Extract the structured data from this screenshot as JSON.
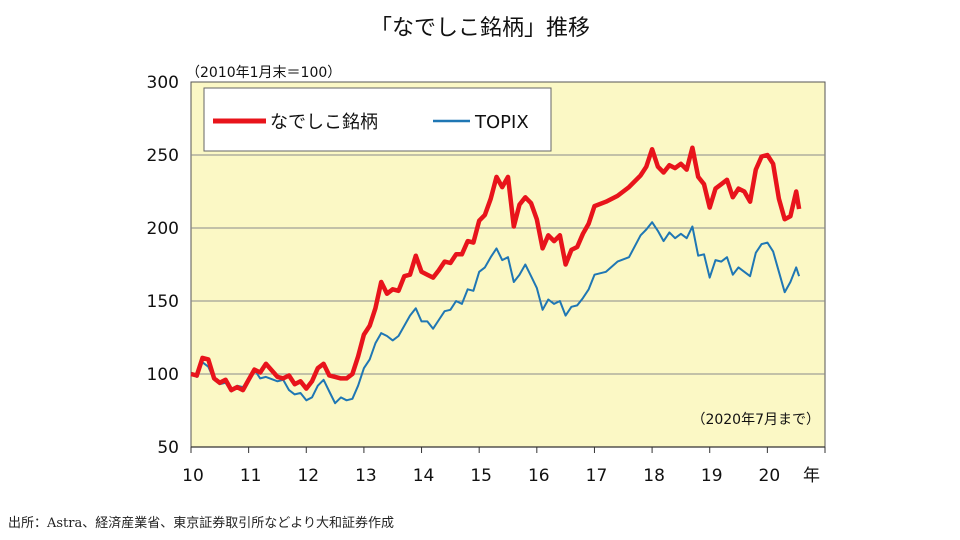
{
  "title": "「なでしこ銘柄」推移",
  "source": "出所：Astra、経済産業省、東京証券取引所などより大和証券作成",
  "colors": {
    "plot_bg": "#FBF8C5",
    "grid": "#8a8a8a",
    "nadeshiko": "#E8141B",
    "topix": "#1F77B4"
  },
  "chart_data": {
    "type": "line",
    "base_note": "（2010年1月末＝100）",
    "end_note": "（2020年7月まで）",
    "xlabel": "年",
    "ylabel": "",
    "ylim": [
      50,
      300
    ],
    "yticks": [
      50,
      100,
      150,
      200,
      250,
      300
    ],
    "xlim": [
      10,
      21.0
    ],
    "xticks": [
      "10",
      "11",
      "12",
      "13",
      "14",
      "15",
      "16",
      "17",
      "18",
      "19",
      "20"
    ],
    "grid": true,
    "legend_position": "top-left",
    "series": [
      {
        "name": "なでしこ銘柄",
        "x": [
          10.0,
          10.1,
          10.2,
          10.3,
          10.4,
          10.5,
          10.6,
          10.7,
          10.8,
          10.9,
          11.0,
          11.1,
          11.2,
          11.3,
          11.5,
          11.6,
          11.7,
          11.8,
          11.9,
          12.0,
          12.1,
          12.2,
          12.3,
          12.4,
          12.5,
          12.6,
          12.7,
          12.8,
          12.9,
          13.0,
          13.1,
          13.2,
          13.3,
          13.4,
          13.5,
          13.6,
          13.7,
          13.8,
          13.9,
          14.0,
          14.1,
          14.2,
          14.3,
          14.4,
          14.5,
          14.6,
          14.7,
          14.8,
          14.9,
          15.0,
          15.1,
          15.2,
          15.3,
          15.4,
          15.5,
          15.6,
          15.7,
          15.8,
          15.9,
          16.0,
          16.1,
          16.2,
          16.3,
          16.4,
          16.5,
          16.6,
          16.7,
          16.8,
          16.9,
          17.0,
          17.2,
          17.4,
          17.6,
          17.8,
          17.9,
          18.0,
          18.1,
          18.2,
          18.3,
          18.4,
          18.5,
          18.6,
          18.7,
          18.8,
          18.9,
          19.0,
          19.1,
          19.2,
          19.3,
          19.4,
          19.5,
          19.6,
          19.7,
          19.8,
          19.9,
          20.0,
          20.1,
          20.2,
          20.3,
          20.4,
          20.5,
          20.55
        ],
        "values": [
          100,
          99,
          111,
          110,
          97,
          94,
          96,
          89,
          91,
          89,
          96,
          103,
          101,
          107,
          98,
          97,
          99,
          93,
          95,
          90,
          95,
          104,
          107,
          99,
          98,
          97,
          97,
          100,
          112,
          127,
          133,
          145,
          163,
          155,
          158,
          157,
          167,
          168,
          181,
          170,
          168,
          166,
          171,
          177,
          176,
          182,
          182,
          191,
          190,
          205,
          209,
          220,
          235,
          228,
          235,
          201,
          216,
          221,
          217,
          206,
          186,
          195,
          191,
          195,
          175,
          185,
          187,
          196,
          203,
          215,
          218,
          222,
          228,
          236,
          242,
          254,
          242,
          238,
          243,
          241,
          244,
          240,
          255,
          235,
          230,
          214,
          227,
          230,
          233,
          221,
          227,
          225,
          218,
          240,
          249,
          250,
          244,
          220,
          206,
          208,
          225,
          213
        ]
      },
      {
        "name": "TOPIX",
        "x": [
          10.0,
          10.1,
          10.2,
          10.3,
          10.4,
          10.5,
          10.6,
          10.7,
          10.8,
          10.9,
          11.0,
          11.1,
          11.2,
          11.3,
          11.5,
          11.6,
          11.7,
          11.8,
          11.9,
          12.0,
          12.1,
          12.2,
          12.3,
          12.4,
          12.5,
          12.6,
          12.7,
          12.8,
          12.9,
          13.0,
          13.1,
          13.2,
          13.3,
          13.4,
          13.5,
          13.6,
          13.7,
          13.8,
          13.9,
          14.0,
          14.1,
          14.2,
          14.3,
          14.4,
          14.5,
          14.6,
          14.7,
          14.8,
          14.9,
          15.0,
          15.1,
          15.2,
          15.3,
          15.4,
          15.5,
          15.6,
          15.7,
          15.8,
          15.9,
          16.0,
          16.1,
          16.2,
          16.3,
          16.4,
          16.5,
          16.6,
          16.7,
          16.8,
          16.9,
          17.0,
          17.2,
          17.4,
          17.6,
          17.8,
          17.9,
          18.0,
          18.1,
          18.2,
          18.3,
          18.4,
          18.5,
          18.6,
          18.7,
          18.8,
          18.9,
          19.0,
          19.1,
          19.2,
          19.3,
          19.4,
          19.5,
          19.6,
          19.7,
          19.8,
          19.9,
          20.0,
          20.1,
          20.2,
          20.3,
          20.4,
          20.5,
          20.55
        ],
        "values": [
          100,
          98,
          108,
          105,
          96,
          93,
          94,
          88,
          92,
          91,
          96,
          103,
          97,
          98,
          95,
          96,
          89,
          86,
          87,
          82,
          84,
          92,
          96,
          88,
          80,
          84,
          82,
          83,
          92,
          104,
          110,
          121,
          128,
          126,
          123,
          126,
          133,
          140,
          145,
          136,
          136,
          131,
          137,
          143,
          144,
          150,
          148,
          158,
          157,
          170,
          173,
          180,
          186,
          178,
          180,
          163,
          168,
          175,
          167,
          159,
          144,
          151,
          148,
          150,
          140,
          146,
          147,
          152,
          158,
          168,
          170,
          177,
          180,
          195,
          199,
          204,
          198,
          191,
          197,
          193,
          196,
          193,
          201,
          181,
          182,
          166,
          178,
          177,
          180,
          168,
          173,
          170,
          167,
          183,
          189,
          190,
          184,
          170,
          156,
          163,
          173,
          167
        ]
      }
    ]
  }
}
